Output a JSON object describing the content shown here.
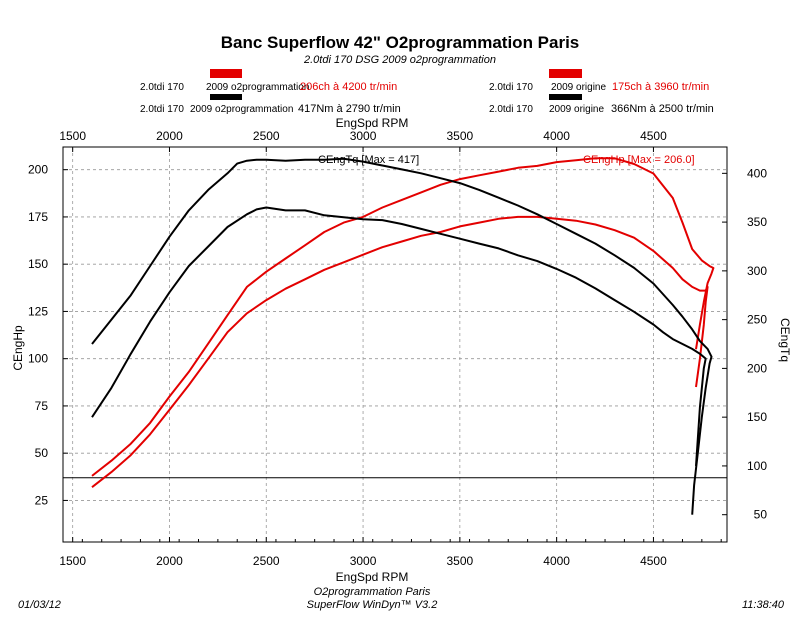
{
  "header": {
    "title": "Banc Superflow 42\" O2programmation Paris",
    "subtitle": "2.0tdi 170 DSG 2009 o2programmation"
  },
  "legend": [
    {
      "c1": "2.0tdi 170",
      "c2": "2009 o2programmation",
      "value": "206ch à 4200 tr/min",
      "color": "#e30000",
      "value_color": "#e30000"
    },
    {
      "c1": "2.0tdi 170",
      "c2": "2009 o2programmation",
      "value": "417Nm à 2790 tr/min",
      "color": "#000000",
      "value_color": "#000000"
    },
    {
      "c1": "2.0tdi 170",
      "c2": "2009 origine",
      "value": "175ch à 3960 tr/min",
      "color": "#e30000",
      "value_color": "#e30000"
    },
    {
      "c1": "2.0tdi 170",
      "c2": "2009 origine",
      "value": "366Nm à 2500 tr/min",
      "color": "#000000",
      "value_color": "#000000"
    }
  ],
  "footer": {
    "date": "01/03/12",
    "line1": "O2programmation Paris",
    "line2": "SuperFlow WinDyn™ V3.2",
    "time": "11:38:40"
  },
  "chart_data": {
    "type": "line",
    "xlabel": "EngSpd RPM",
    "x_ticks": [
      1500,
      2000,
      2500,
      3000,
      3500,
      4000,
      4500
    ],
    "xlim": [
      1450,
      4880
    ],
    "y_left": {
      "label": "CEngHp",
      "ticks": [
        25,
        50,
        75,
        100,
        125,
        150,
        175,
        200
      ],
      "lim": [
        3,
        212
      ]
    },
    "y_right": {
      "label": "CEngTq",
      "ticks": [
        50,
        100,
        150,
        200,
        250,
        300,
        350,
        400
      ],
      "lim": [
        22,
        427
      ]
    },
    "annotations": {
      "tq_max": "CEngTq [Max = 417]",
      "hp_max": "CEngHp [Max = 206.0]"
    },
    "colors": {
      "hp": "#e30000",
      "tq": "#000000"
    },
    "series": [
      {
        "metric": "hp",
        "axis": "left",
        "color": "#e30000",
        "x": [
          1600,
          1700,
          1800,
          1900,
          2000,
          2100,
          2200,
          2300,
          2400,
          2500,
          2600,
          2700,
          2800,
          2900,
          3000,
          3100,
          3200,
          3300,
          3400,
          3500,
          3600,
          3700,
          3800,
          3900,
          4000,
          4100,
          4200,
          4300,
          4400,
          4500,
          4600,
          4650,
          4700,
          4750,
          4790,
          4810,
          4800,
          4780,
          4760,
          4740,
          4720
        ],
        "y": [
          38,
          46,
          55,
          66,
          80,
          93,
          108,
          123,
          138,
          146,
          153,
          160,
          167,
          172,
          175,
          180,
          184,
          188,
          192,
          195,
          197,
          199,
          201,
          202,
          204,
          205,
          206,
          206,
          203,
          198,
          185,
          172,
          158,
          152,
          149,
          148,
          145,
          140,
          130,
          118,
          105
        ]
      },
      {
        "metric": "hp",
        "axis": "left",
        "color": "#e30000",
        "x": [
          1600,
          1700,
          1800,
          1900,
          2000,
          2100,
          2200,
          2300,
          2400,
          2500,
          2600,
          2700,
          2800,
          2900,
          3000,
          3100,
          3200,
          3300,
          3400,
          3500,
          3600,
          3700,
          3800,
          3900,
          4000,
          4100,
          4200,
          4300,
          4400,
          4500,
          4600,
          4650,
          4700,
          4740,
          4770,
          4780,
          4770,
          4760,
          4740,
          4720
        ],
        "y": [
          32,
          40,
          49,
          60,
          73,
          86,
          100,
          114,
          124,
          131,
          137,
          142,
          147,
          151,
          155,
          159,
          162,
          165,
          167,
          170,
          172,
          174,
          175,
          175,
          174,
          173,
          171,
          168,
          164,
          157,
          148,
          142,
          138,
          136,
          136,
          138,
          130,
          118,
          100,
          85
        ]
      },
      {
        "metric": "tq",
        "axis": "right",
        "color": "#000000",
        "x": [
          1600,
          1700,
          1800,
          1900,
          2000,
          2100,
          2200,
          2300,
          2350,
          2400,
          2450,
          2500,
          2600,
          2700,
          2800,
          2900,
          3000,
          3100,
          3200,
          3300,
          3400,
          3500,
          3600,
          3700,
          3800,
          3900,
          4000,
          4100,
          4200,
          4300,
          4400,
          4500,
          4600,
          4650,
          4700,
          4740,
          4780,
          4800,
          4790,
          4770,
          4750,
          4730,
          4710,
          4700
        ],
        "y": [
          225,
          250,
          275,
          305,
          335,
          362,
          383,
          400,
          410,
          413,
          414,
          414,
          413,
          414,
          414,
          415,
          412,
          408,
          404,
          400,
          395,
          390,
          383,
          375,
          367,
          358,
          348,
          338,
          328,
          316,
          303,
          287,
          265,
          253,
          240,
          228,
          220,
          212,
          205,
          180,
          150,
          115,
          80,
          50
        ]
      },
      {
        "metric": "tq",
        "axis": "right",
        "color": "#000000",
        "x": [
          1600,
          1700,
          1800,
          1900,
          2000,
          2100,
          2200,
          2300,
          2400,
          2450,
          2500,
          2600,
          2700,
          2800,
          2900,
          3000,
          3100,
          3200,
          3300,
          3400,
          3500,
          3600,
          3700,
          3800,
          3900,
          4000,
          4100,
          4200,
          4300,
          4400,
          4500,
          4550,
          4600,
          4650,
          4700,
          4740,
          4770,
          4760,
          4740,
          4720
        ],
        "y": [
          150,
          180,
          215,
          248,
          278,
          305,
          325,
          345,
          358,
          363,
          365,
          362,
          362,
          357,
          355,
          353,
          352,
          348,
          343,
          338,
          333,
          328,
          323,
          316,
          310,
          302,
          293,
          282,
          270,
          258,
          245,
          237,
          230,
          225,
          220,
          215,
          210,
          200,
          160,
          100
        ]
      }
    ],
    "reference_line": {
      "axis": "left",
      "y": 37
    },
    "grid": true
  }
}
